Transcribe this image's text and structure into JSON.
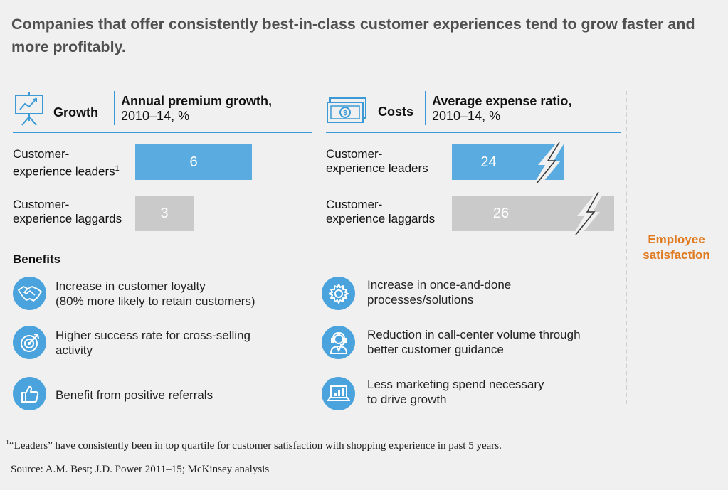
{
  "title": "Companies that offer consistently best-in-class customer experiences tend to grow faster and more profitably.",
  "growth": {
    "label": "Growth",
    "metric_bold": "Annual premium growth,",
    "metric_rest": "2010–14, %",
    "icon": "presentation-chart-icon"
  },
  "costs": {
    "label": "Costs",
    "metric_bold": "Average expense ratio,",
    "metric_rest": "2010–14, %",
    "icon": "money-bill-icon"
  },
  "chart_data": [
    {
      "type": "bar",
      "title": "Annual premium growth, 2010–14, %",
      "categories": [
        "Customer-experience leaders",
        "Customer-experience laggards"
      ],
      "values": [
        6,
        3
      ]
    },
    {
      "type": "bar",
      "title": "Average expense ratio, 2010–14, %",
      "categories": [
        "Customer-experience leaders",
        "Customer-experience laggards"
      ],
      "values": [
        24,
        26
      ],
      "axis_break": true
    }
  ],
  "rows": {
    "leaders_line1": "Customer-",
    "leaders_line2_growth": "experience leaders",
    "leaders_sup": "1",
    "leaders_line2_costs": "experience leaders",
    "laggards_line1": "Customer-",
    "laggards_line2": "experience laggards"
  },
  "benefits": {
    "heading": "Benefits",
    "left": [
      {
        "line1": "Increase in customer loyalty",
        "line2": "(80% more likely to retain customers)",
        "icon": "handshake-icon"
      },
      {
        "line1": "Higher success rate for cross-selling",
        "line2": "activity",
        "icon": "target-icon"
      },
      {
        "line1": "Benefit from positive referrals",
        "line2": "",
        "icon": "thumbs-up-icon"
      }
    ],
    "right": [
      {
        "line1": "Increase in once-and-done",
        "line2": "processes/solutions",
        "icon": "gear-icon"
      },
      {
        "line1": "Reduction in call-center volume through",
        "line2": "better customer guidance",
        "icon": "headset-agent-icon"
      },
      {
        "line1": "Less marketing spend necessary",
        "line2": "to drive growth",
        "icon": "laptop-chart-icon"
      }
    ]
  },
  "employee": {
    "line1": "Employee",
    "line2": "satisfaction"
  },
  "footnote": {
    "sup": "1",
    "text": "“Leaders” have consistently been in top quartile for customer satisfaction with shopping experience in past 5 years."
  },
  "source": "Source: A.M. Best; J.D. Power 2011–15; McKinsey analysis",
  "colors": {
    "accent": "#3b9ad6",
    "bar_blue": "#5aace0",
    "bar_gray": "#cacaca",
    "orange": "#e07a1f"
  }
}
